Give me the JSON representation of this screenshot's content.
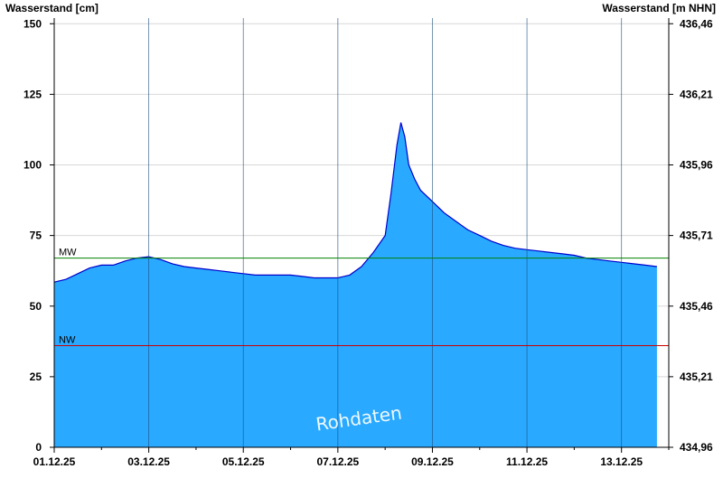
{
  "chart_data": {
    "type": "area",
    "title": "",
    "ylabel": "Wasserstand [cm]",
    "ylabel_right": "Wasserstand [m NHN]",
    "xlim": [
      "2025-12-01T00:00",
      "2025-12-14T00:00"
    ],
    "ylim": [
      0,
      152
    ],
    "x_ticks": [
      "01.12.25",
      "03.12.25",
      "05.12.25",
      "07.12.25",
      "09.12.25",
      "11.12.25",
      "13.12.25"
    ],
    "y_ticks": [
      "0",
      "25",
      "50",
      "75",
      "100",
      "125",
      "150"
    ],
    "y_ticks_right": [
      "434,96",
      "435,21",
      "435,46",
      "435,71",
      "435,96",
      "436,21",
      "436,46"
    ],
    "grid": true,
    "series_color": "#29a9ff",
    "series_line_color": "#0000cc",
    "reference_lines": [
      {
        "label": "MW",
        "value": 67,
        "color": "#008000"
      },
      {
        "label": "NW",
        "value": 36,
        "color": "#cc0000"
      }
    ],
    "watermark": "Rohdaten",
    "series": [
      {
        "x": [
          "2025-12-01T00:00",
          "2025-12-01T06:00",
          "2025-12-01T12:00",
          "2025-12-01T18:00",
          "2025-12-02T00:00",
          "2025-12-02T06:00",
          "2025-12-02T12:00",
          "2025-12-02T18:00",
          "2025-12-03T00:00",
          "2025-12-03T06:00",
          "2025-12-03T12:00",
          "2025-12-03T18:00",
          "2025-12-04T00:00",
          "2025-12-04T06:00",
          "2025-12-04T12:00",
          "2025-12-04T18:00",
          "2025-12-05T00:00",
          "2025-12-05T06:00",
          "2025-12-05T12:00",
          "2025-12-05T18:00",
          "2025-12-06T00:00",
          "2025-12-06T06:00",
          "2025-12-06T12:00",
          "2025-12-06T18:00",
          "2025-12-07T00:00",
          "2025-12-07T06:00",
          "2025-12-07T12:00",
          "2025-12-07T18:00",
          "2025-12-08T00:00",
          "2025-12-08T03:00",
          "2025-12-08T06:00",
          "2025-12-08T08:00",
          "2025-12-08T10:00",
          "2025-12-08T12:00",
          "2025-12-08T15:00",
          "2025-12-08T18:00",
          "2025-12-09T00:00",
          "2025-12-09T06:00",
          "2025-12-09T12:00",
          "2025-12-09T18:00",
          "2025-12-10T00:00",
          "2025-12-10T06:00",
          "2025-12-10T12:00",
          "2025-12-10T18:00",
          "2025-12-11T00:00",
          "2025-12-11T06:00",
          "2025-12-11T12:00",
          "2025-12-11T18:00",
          "2025-12-12T00:00",
          "2025-12-12T06:00",
          "2025-12-12T12:00",
          "2025-12-12T18:00",
          "2025-12-13T00:00",
          "2025-12-13T06:00",
          "2025-12-13T12:00",
          "2025-12-13T18:00"
        ],
        "values": [
          58.5,
          59.5,
          61.5,
          63.5,
          64.5,
          64.5,
          66,
          67,
          67.5,
          66.5,
          65,
          64,
          63.5,
          63,
          62.5,
          62,
          61.5,
          61,
          61,
          61,
          61,
          60.5,
          60,
          60,
          60,
          61,
          64,
          69,
          75,
          90,
          107,
          115,
          110,
          100,
          95,
          91,
          87,
          83,
          80,
          77,
          75,
          73,
          71.5,
          70.5,
          70,
          69.5,
          69,
          68.5,
          68,
          67,
          66.5,
          66,
          65.5,
          65,
          64.5,
          64
        ]
      }
    ]
  }
}
